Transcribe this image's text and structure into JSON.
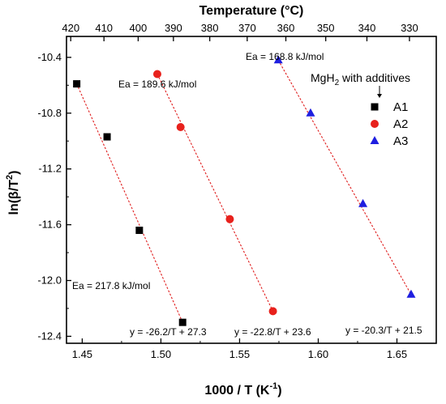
{
  "chart_data": {
    "type": "scatter",
    "xlabel": "1000 / T (K",
    "xlabel_sup": "-1",
    "xlabel_close": ")",
    "ylabel": "ln(β/T",
    "ylabel_sup": "2",
    "ylabel_close": ")",
    "top_axis_label": "Temperature (°C)",
    "xlim": [
      1.44,
      1.675
    ],
    "ylim": [
      -12.45,
      -10.25
    ],
    "x_ticks": [
      1.45,
      1.5,
      1.55,
      1.6,
      1.65
    ],
    "x_tick_labels": [
      "1.45",
      "1.50",
      "1.55",
      "1.60",
      "1.65"
    ],
    "y_ticks": [
      -10.4,
      -10.8,
      -11.2,
      -11.6,
      -12.0,
      -12.4
    ],
    "y_tick_labels": [
      "-10.4",
      "-10.8",
      "-11.2",
      "-11.6",
      "-12.0",
      "-12.4"
    ],
    "top_ticks_celsius": [
      420,
      410,
      400,
      390,
      380,
      370,
      360,
      350,
      340,
      330
    ],
    "top_tick_labels": [
      "420",
      "410",
      "400",
      "390",
      "380",
      "370",
      "360",
      "350",
      "340",
      "330"
    ],
    "legend_title": "MgH",
    "legend_title_sub": "2",
    "legend_title_rest": " with additives",
    "legend_position": "top-right",
    "series": [
      {
        "name": "A1",
        "marker": "square",
        "color": "#000000",
        "x": [
          1.4465,
          1.4658,
          1.4863,
          1.5138
        ],
        "y": [
          -10.59,
          -10.97,
          -11.64,
          -12.3
        ],
        "fit": {
          "slope": -26.2,
          "intercept": 27.3
        },
        "fit_x_range": [
          1.4465,
          1.5138
        ],
        "fit_y_range": [
          -10.59,
          -12.3
        ],
        "equation": "y = -26.2/T + 27.3",
        "ea": "Ea = 217.8 kJ/mol"
      },
      {
        "name": "A2",
        "marker": "circle",
        "color": "#e8211c",
        "x": [
          1.4977,
          1.5125,
          1.5438,
          1.5712
        ],
        "y": [
          -10.52,
          -10.9,
          -11.56,
          -12.22
        ],
        "fit": {
          "slope": -22.8,
          "intercept": 23.6
        },
        "fit_x_range": [
          1.4977,
          1.5712
        ],
        "fit_y_range": [
          -10.52,
          -12.22
        ],
        "equation": "y = -22.8/T + 23.6",
        "ea": "Ea = 189.6 kJ/mol"
      },
      {
        "name": "A3",
        "marker": "triangle",
        "color": "#1f1fe0",
        "x": [
          1.5746,
          1.5951,
          1.6284,
          1.659
        ],
        "y": [
          -10.42,
          -10.8,
          -11.45,
          -12.1
        ],
        "fit": {
          "slope": -20.3,
          "intercept": 21.5
        },
        "fit_x_range": [
          1.5746,
          1.659
        ],
        "fit_y_range": [
          -10.42,
          -12.1
        ],
        "equation": "y = -20.3/T + 21.5",
        "ea": "Ea = 168.8 kJ/mol"
      }
    ],
    "fit_line_color": "#e02020",
    "grid": false
  }
}
